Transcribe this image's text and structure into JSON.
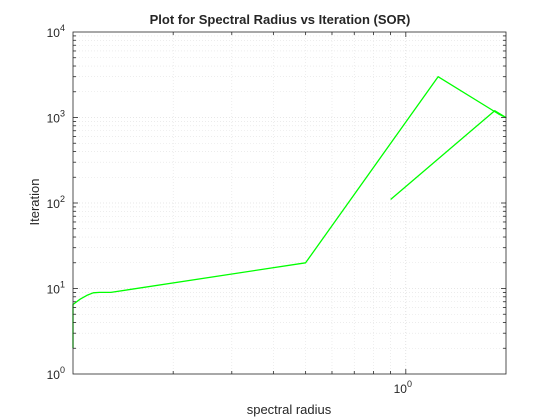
{
  "chart_data": {
    "type": "line",
    "title": "Plot for Spectral Radius vs Iteration (SOR)",
    "xlabel": "spectral radius",
    "ylabel": "Iteration",
    "xscale": "log",
    "yscale": "log",
    "xlim": [
      0.1,
      2.0
    ],
    "ylim": [
      1,
      10000
    ],
    "x_tick_labels": [
      {
        "value": 1,
        "base": "10",
        "exp": "0"
      }
    ],
    "y_tick_labels": [
      {
        "value": 1,
        "base": "10",
        "exp": "0"
      },
      {
        "value": 10,
        "base": "10",
        "exp": "1"
      },
      {
        "value": 100,
        "base": "10",
        "exp": "2"
      },
      {
        "value": 1000,
        "base": "10",
        "exp": "3"
      },
      {
        "value": 10000,
        "base": "10",
        "exp": "4"
      }
    ],
    "grid": true,
    "minor_grid": true,
    "series": [
      {
        "color": "#00ff00",
        "points": [
          [
            0.1,
            2
          ],
          [
            0.1,
            6.5
          ],
          [
            0.105,
            7.5
          ],
          [
            0.11,
            8.3
          ],
          [
            0.115,
            8.9
          ],
          [
            0.12,
            9.0
          ],
          [
            0.13,
            9.0
          ],
          [
            0.5,
            20
          ],
          [
            1.25,
            3000
          ],
          [
            1.9,
            1100
          ],
          [
            2.0,
            1000
          ],
          [
            1.85,
            1200
          ],
          [
            0.9,
            110
          ]
        ]
      }
    ]
  }
}
